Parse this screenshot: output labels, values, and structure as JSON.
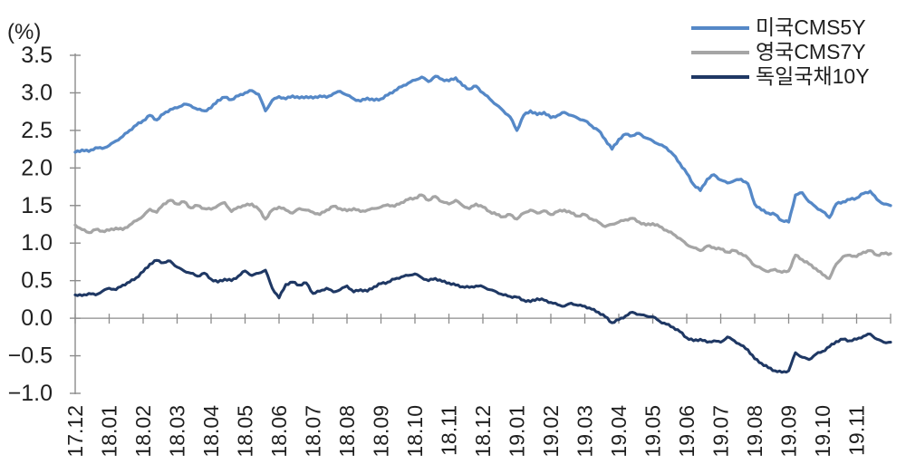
{
  "chart_data": {
    "type": "line",
    "title": "",
    "unit_label": "(%)",
    "xlabel": "",
    "ylabel": "(%)",
    "ylim": [
      -1.0,
      3.5
    ],
    "grid": "zero-line-only",
    "legend_position": "top-right",
    "y_tick_labels": [
      "3.5",
      "3.0",
      "2.5",
      "2.0",
      "1.5",
      "1.0",
      "0.5",
      "0.0",
      "−0.5",
      "−1.0"
    ],
    "y_tick_values": [
      3.5,
      3.0,
      2.5,
      2.0,
      1.5,
      1.0,
      0.5,
      0.0,
      -0.5,
      -1.0
    ],
    "categories": [
      "17.12",
      "18.01",
      "18.02",
      "18.03",
      "18.04",
      "18.05",
      "18.06",
      "18.07",
      "18.08",
      "18.09",
      "18.10",
      "18.11",
      "18.12",
      "19.01",
      "19.02",
      "19.03",
      "19.04",
      "19.05",
      "19.06",
      "19.07",
      "19.08",
      "19.09",
      "19.10",
      "19.11"
    ],
    "points_per_month": 5,
    "axis_color": "#8c8c8c",
    "text_color": "#1f1f1f",
    "series": [
      {
        "name": "미국CMS5Y",
        "color": "#5588c7",
        "values": [
          2.21,
          2.24,
          2.22,
          2.27,
          2.26,
          2.3,
          2.36,
          2.42,
          2.5,
          2.57,
          2.63,
          2.7,
          2.64,
          2.72,
          2.78,
          2.8,
          2.85,
          2.83,
          2.78,
          2.76,
          2.8,
          2.9,
          2.94,
          2.91,
          2.96,
          3.0,
          3.03,
          2.98,
          2.76,
          2.9,
          2.95,
          2.92,
          2.96,
          2.93,
          2.95,
          2.93,
          2.96,
          2.94,
          2.99,
          3.02,
          2.97,
          2.92,
          2.89,
          2.93,
          2.9,
          2.92,
          2.97,
          3.03,
          3.08,
          3.13,
          3.17,
          3.21,
          3.15,
          3.22,
          3.18,
          3.16,
          3.2,
          3.1,
          3.05,
          3.09,
          3.0,
          2.92,
          2.84,
          2.76,
          2.68,
          2.5,
          2.7,
          2.76,
          2.71,
          2.74,
          2.67,
          2.7,
          2.74,
          2.7,
          2.66,
          2.63,
          2.56,
          2.5,
          2.38,
          2.25,
          2.38,
          2.45,
          2.43,
          2.46,
          2.4,
          2.36,
          2.31,
          2.27,
          2.18,
          2.06,
          1.93,
          1.78,
          1.7,
          1.85,
          1.91,
          1.84,
          1.8,
          1.83,
          1.85,
          1.79,
          1.52,
          1.44,
          1.4,
          1.38,
          1.3,
          1.28,
          1.64,
          1.67,
          1.55,
          1.48,
          1.42,
          1.34,
          1.52,
          1.55,
          1.58,
          1.6,
          1.66,
          1.69,
          1.58,
          1.52,
          1.5
        ]
      },
      {
        "name": "영국CMS7Y",
        "color": "#a5a5a5",
        "values": [
          1.24,
          1.18,
          1.14,
          1.18,
          1.16,
          1.17,
          1.2,
          1.18,
          1.24,
          1.3,
          1.36,
          1.45,
          1.41,
          1.52,
          1.57,
          1.52,
          1.55,
          1.47,
          1.5,
          1.46,
          1.45,
          1.5,
          1.54,
          1.42,
          1.48,
          1.5,
          1.52,
          1.45,
          1.32,
          1.44,
          1.48,
          1.44,
          1.4,
          1.46,
          1.44,
          1.41,
          1.38,
          1.44,
          1.49,
          1.46,
          1.43,
          1.46,
          1.42,
          1.44,
          1.46,
          1.48,
          1.51,
          1.49,
          1.54,
          1.58,
          1.6,
          1.64,
          1.57,
          1.62,
          1.55,
          1.52,
          1.57,
          1.5,
          1.46,
          1.52,
          1.48,
          1.42,
          1.38,
          1.35,
          1.38,
          1.32,
          1.4,
          1.44,
          1.4,
          1.43,
          1.38,
          1.42,
          1.44,
          1.4,
          1.36,
          1.38,
          1.32,
          1.28,
          1.22,
          1.25,
          1.28,
          1.31,
          1.33,
          1.28,
          1.24,
          1.26,
          1.22,
          1.17,
          1.12,
          1.06,
          0.98,
          0.94,
          0.9,
          0.96,
          0.94,
          0.92,
          0.88,
          0.9,
          0.86,
          0.8,
          0.7,
          0.66,
          0.62,
          0.65,
          0.61,
          0.63,
          0.84,
          0.78,
          0.72,
          0.66,
          0.58,
          0.53,
          0.72,
          0.82,
          0.84,
          0.82,
          0.88,
          0.9,
          0.84,
          0.86,
          0.86
        ]
      },
      {
        "name": "독일국채10Y",
        "color": "#1f3864",
        "values": [
          0.31,
          0.3,
          0.33,
          0.31,
          0.36,
          0.4,
          0.38,
          0.44,
          0.48,
          0.54,
          0.62,
          0.72,
          0.77,
          0.74,
          0.76,
          0.68,
          0.63,
          0.6,
          0.56,
          0.6,
          0.52,
          0.48,
          0.52,
          0.5,
          0.56,
          0.63,
          0.57,
          0.6,
          0.64,
          0.4,
          0.27,
          0.45,
          0.48,
          0.44,
          0.47,
          0.33,
          0.36,
          0.4,
          0.35,
          0.38,
          0.43,
          0.35,
          0.38,
          0.36,
          0.42,
          0.46,
          0.48,
          0.52,
          0.55,
          0.57,
          0.59,
          0.54,
          0.5,
          0.53,
          0.49,
          0.47,
          0.44,
          0.42,
          0.41,
          0.43,
          0.42,
          0.38,
          0.35,
          0.31,
          0.29,
          0.28,
          0.24,
          0.22,
          0.26,
          0.24,
          0.21,
          0.18,
          0.16,
          0.2,
          0.17,
          0.16,
          0.12,
          0.08,
          0.02,
          -0.06,
          -0.02,
          0.03,
          0.08,
          0.05,
          0.03,
          0.02,
          -0.04,
          -0.08,
          -0.12,
          -0.18,
          -0.26,
          -0.3,
          -0.28,
          -0.32,
          -0.3,
          -0.32,
          -0.25,
          -0.3,
          -0.36,
          -0.42,
          -0.54,
          -0.6,
          -0.66,
          -0.7,
          -0.72,
          -0.7,
          -0.46,
          -0.52,
          -0.55,
          -0.48,
          -0.44,
          -0.38,
          -0.31,
          -0.28,
          -0.3,
          -0.28,
          -0.24,
          -0.21,
          -0.28,
          -0.32,
          -0.32
        ]
      }
    ]
  }
}
